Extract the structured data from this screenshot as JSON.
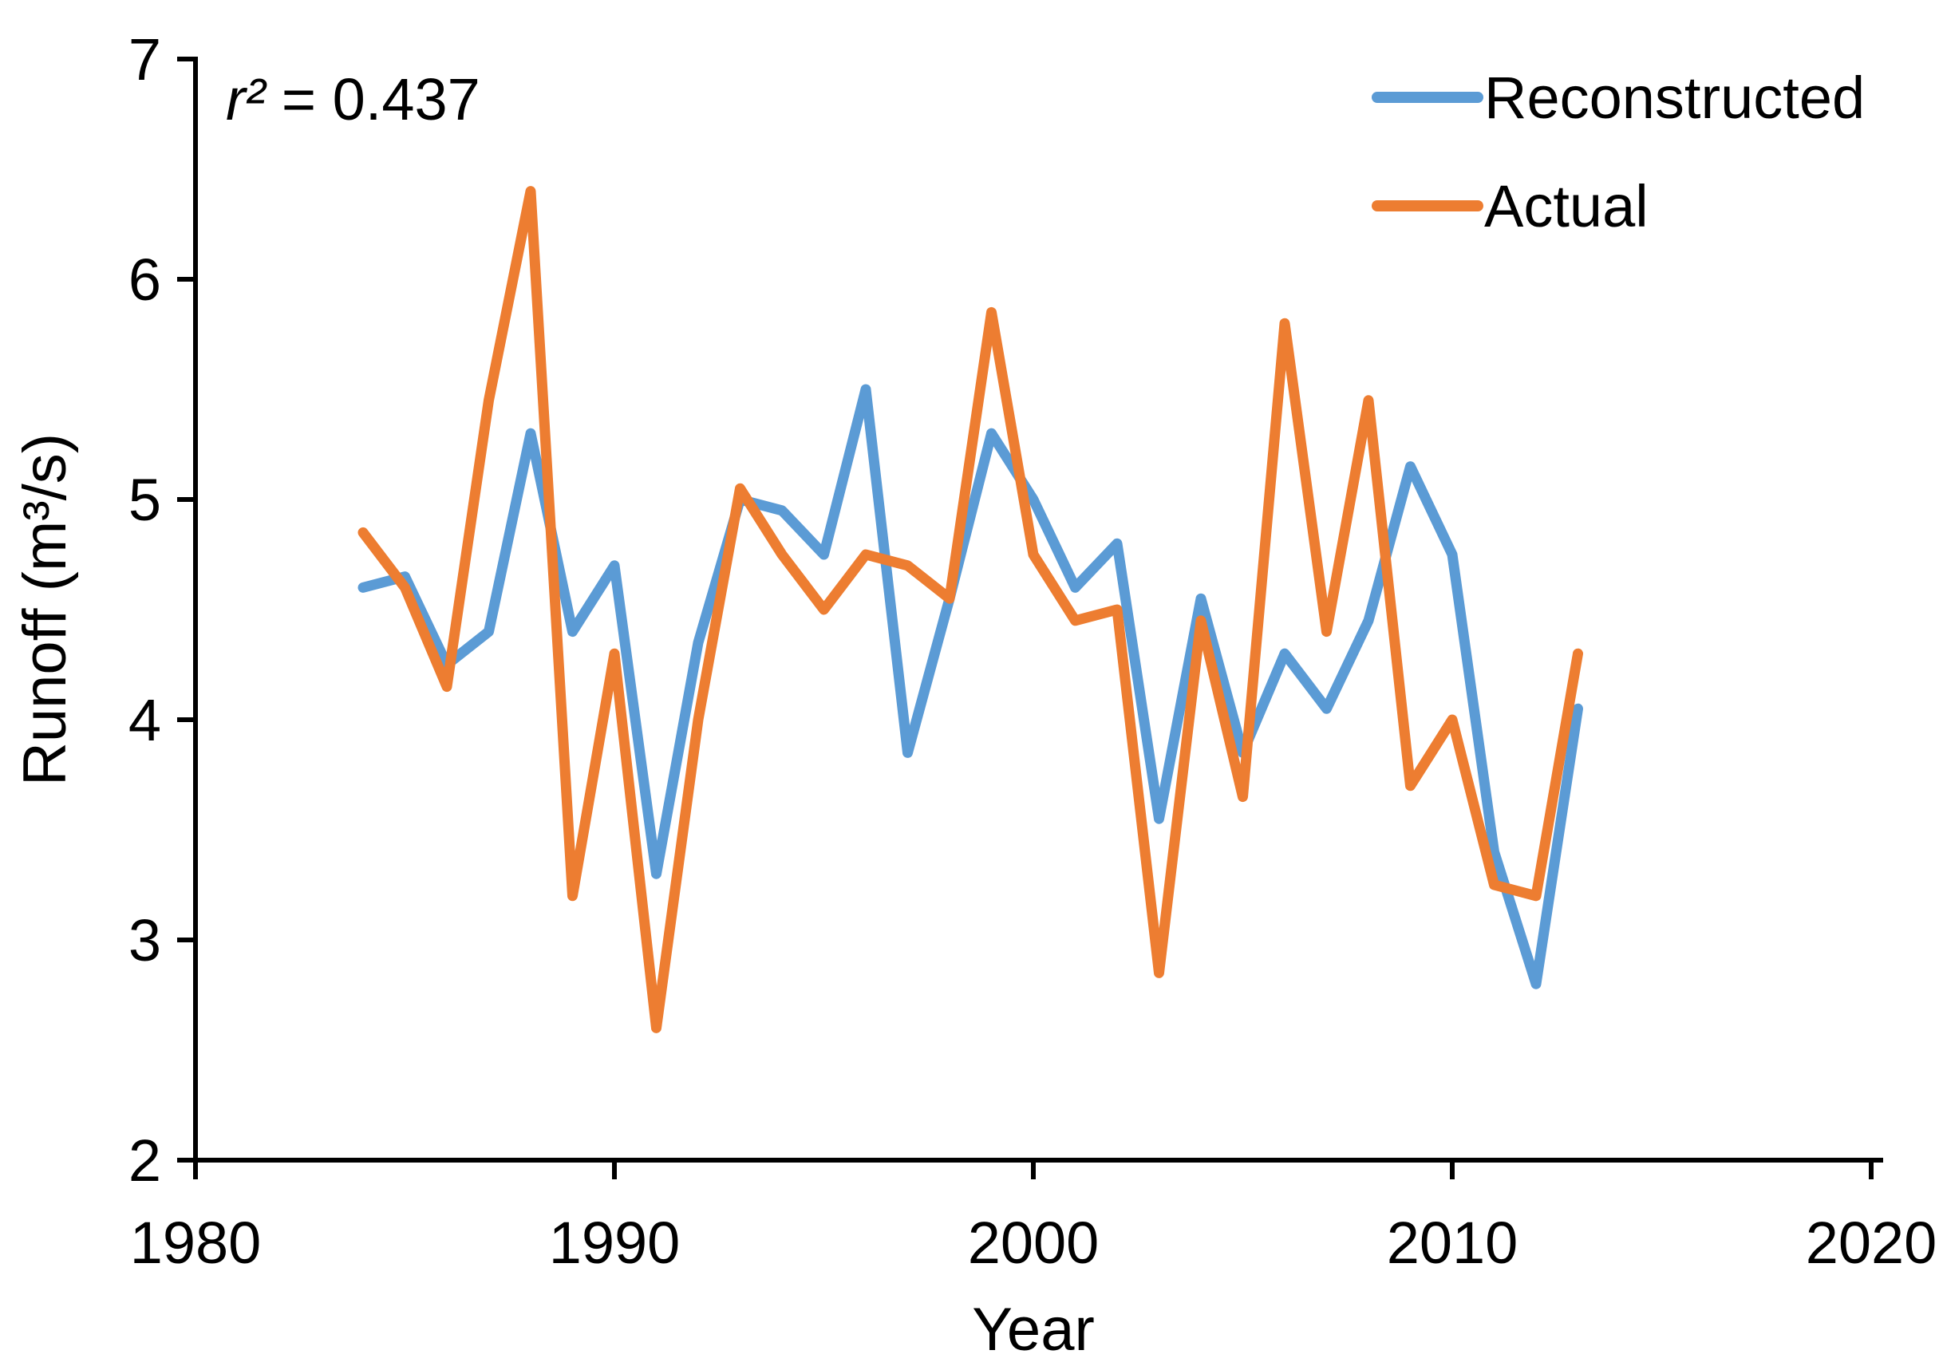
{
  "chart_data": {
    "type": "line",
    "title": "",
    "xlabel": "Year",
    "ylabel": "Runoff (m³/s)",
    "annotation": {
      "symbol": "r²",
      "text": " = 0.437"
    },
    "xlim": [
      1980,
      2020
    ],
    "ylim": [
      2,
      7
    ],
    "xticks": [
      1980,
      1990,
      2000,
      2010,
      2020
    ],
    "yticks": [
      2,
      3,
      4,
      5,
      6,
      7
    ],
    "grid": false,
    "legend_position": "top-right",
    "x": [
      1984,
      1985,
      1986,
      1987,
      1988,
      1989,
      1990,
      1991,
      1992,
      1993,
      1994,
      1995,
      1996,
      1997,
      1998,
      1999,
      2000,
      2001,
      2002,
      2003,
      2004,
      2005,
      2006,
      2007,
      2008,
      2009,
      2010,
      2011,
      2012,
      2013
    ],
    "series": [
      {
        "name": "Reconstructed",
        "color": "#5B9BD5",
        "values": [
          4.6,
          4.65,
          4.25,
          4.4,
          5.3,
          4.4,
          4.7,
          3.3,
          4.35,
          5.0,
          4.95,
          4.75,
          5.5,
          3.85,
          4.55,
          5.3,
          5.0,
          4.6,
          4.8,
          3.55,
          4.55,
          3.85,
          4.3,
          4.05,
          4.45,
          5.15,
          4.75,
          3.4,
          2.8,
          4.05
        ]
      },
      {
        "name": "Actual",
        "color": "#ED7D31",
        "values": [
          4.85,
          4.6,
          4.15,
          5.45,
          6.4,
          3.2,
          4.3,
          2.6,
          4.0,
          5.05,
          4.75,
          4.5,
          4.75,
          4.7,
          4.55,
          5.85,
          4.75,
          4.45,
          4.5,
          2.85,
          4.45,
          3.65,
          5.8,
          4.4,
          5.45,
          3.7,
          4.0,
          3.25,
          3.2,
          4.3
        ]
      }
    ]
  }
}
